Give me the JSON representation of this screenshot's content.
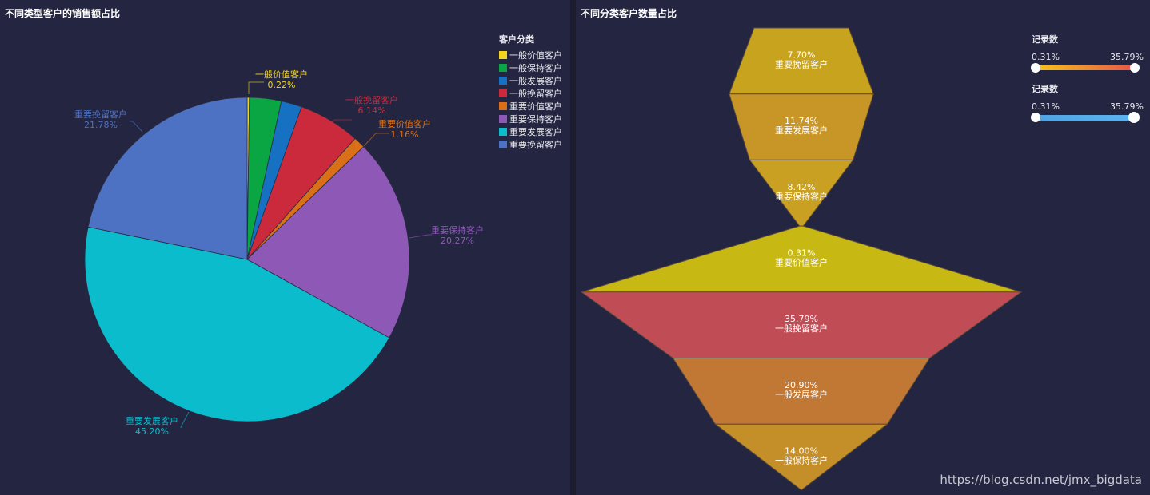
{
  "left_panel": {
    "title": "不同类型客户的销售额占比",
    "legend_title": "客户分类"
  },
  "right_panel": {
    "title": "不同分类客户数量占比",
    "visual_maps": [
      {
        "title": "记录数",
        "min": "0.31%",
        "max": "35.79%",
        "gradient": [
          "#f5c518",
          "#e8564a"
        ]
      },
      {
        "title": "记录数",
        "min": "0.31%",
        "max": "35.79%",
        "gradient": [
          "#4fa3e3",
          "#5cb3ee"
        ]
      }
    ]
  },
  "watermark": "https://blog.csdn.net/jmx_bigdata",
  "chart_data": [
    {
      "type": "pie",
      "title": "不同类型客户的销售额占比",
      "legend_title": "客户分类",
      "legend_position": "top-right",
      "categories": [
        "一般价值客户",
        "一般保持客户",
        "一般发展客户",
        "一般挽留客户",
        "重要价值客户",
        "重要保持客户",
        "重要发展客户",
        "重要挽留客户"
      ],
      "values": [
        0.22,
        3.16,
        2.07,
        6.14,
        1.16,
        20.27,
        45.2,
        21.78
      ],
      "labels": [
        "0.22%",
        "",
        "",
        "6.14%",
        "1.16%",
        "20.27%",
        "45.20%",
        "21.78%"
      ],
      "colors": [
        "#f2d51a",
        "#0aa644",
        "#1671c2",
        "#cb2a3c",
        "#d96f17",
        "#8e58b7",
        "#0bbccc",
        "#4d72c4"
      ],
      "center": [
        309,
        325
      ],
      "radius": 203
    },
    {
      "type": "funnel",
      "title": "不同分类客户数量占比",
      "categories": [
        "重要挽留客户",
        "重要发展客户",
        "重要保持客户",
        "重要价值客户",
        "一般挽留客户",
        "一般发展客户",
        "一般保持客户"
      ],
      "values": [
        7.7,
        11.74,
        8.42,
        0.31,
        35.79,
        20.9,
        14.0
      ],
      "labels": [
        "7.70%",
        "11.74%",
        "8.42%",
        "0.31%",
        "35.79%",
        "20.90%",
        "14.00%"
      ],
      "visual_map": {
        "title": "记录数",
        "min": 0.31,
        "max": 35.79
      }
    }
  ]
}
